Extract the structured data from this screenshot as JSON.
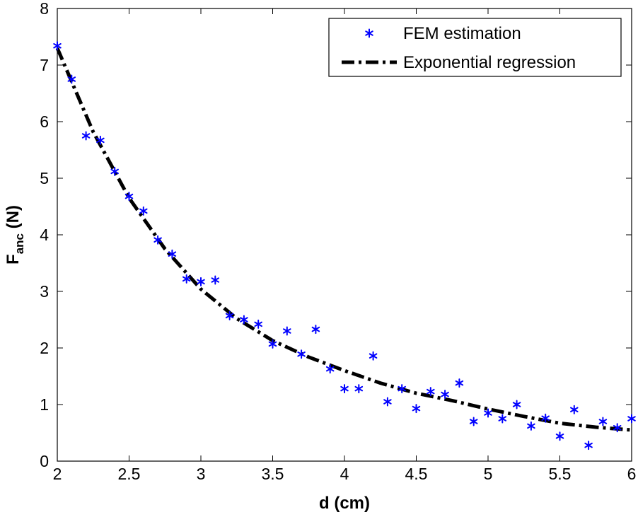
{
  "chart_data": {
    "type": "scatter",
    "title": "",
    "xlabel": "d (cm)",
    "ylabel": {
      "main": "F",
      "sub": "anc",
      "unit": " (N)"
    },
    "xlim": [
      2,
      6
    ],
    "ylim": [
      0,
      8
    ],
    "grid": false,
    "legend_position": "top-right",
    "x_ticks": [
      "2",
      "2.5",
      "3",
      "3.5",
      "4",
      "4.5",
      "5",
      "5.5",
      "6"
    ],
    "y_ticks": [
      "0",
      "1",
      "2",
      "3",
      "4",
      "5",
      "6",
      "7",
      "8"
    ],
    "series": [
      {
        "name": "FEM estimation",
        "style": "markers",
        "marker": "asterisk",
        "color": "#0000ff",
        "x": [
          2.0,
          2.1,
          2.2,
          2.3,
          2.4,
          2.5,
          2.6,
          2.7,
          2.8,
          2.9,
          3.0,
          3.1,
          3.2,
          3.3,
          3.4,
          3.5,
          3.6,
          3.7,
          3.8,
          3.9,
          4.0,
          4.1,
          4.2,
          4.3,
          4.4,
          4.5,
          4.6,
          4.7,
          4.8,
          4.9,
          5.0,
          5.1,
          5.2,
          5.3,
          5.4,
          5.5,
          5.6,
          5.7,
          5.8,
          5.9,
          6.0
        ],
        "y": [
          7.34,
          6.75,
          5.75,
          5.67,
          5.12,
          4.68,
          4.42,
          3.91,
          3.66,
          3.22,
          3.17,
          3.2,
          2.57,
          2.5,
          2.42,
          2.07,
          2.3,
          1.89,
          2.33,
          1.63,
          1.28,
          1.28,
          1.86,
          1.05,
          1.28,
          0.93,
          1.23,
          1.18,
          1.38,
          0.7,
          0.85,
          0.75,
          1.0,
          0.62,
          0.76,
          0.44,
          0.91,
          0.28,
          0.7,
          0.59,
          0.75
        ]
      },
      {
        "name": "Exponential regression",
        "style": "dash-dot-line",
        "color": "#000000",
        "x": [
          2.0,
          2.25,
          2.5,
          2.75,
          3.0,
          3.25,
          3.5,
          3.75,
          4.0,
          4.25,
          4.5,
          4.75,
          5.0,
          5.25,
          5.5,
          5.75,
          6.0
        ],
        "y": [
          7.3,
          5.82,
          4.65,
          3.75,
          3.04,
          2.52,
          2.13,
          1.84,
          1.6,
          1.38,
          1.2,
          1.07,
          0.92,
          0.79,
          0.67,
          0.6,
          0.55
        ]
      }
    ]
  }
}
